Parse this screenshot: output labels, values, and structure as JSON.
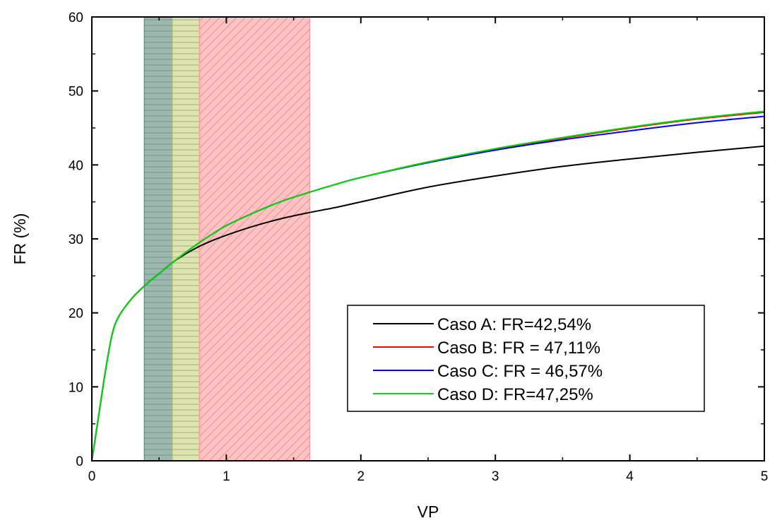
{
  "chart_data": {
    "type": "line",
    "xlabel": "VP",
    "ylabel": "FR (%)",
    "xlim": [
      0,
      5
    ],
    "ylim": [
      0,
      60
    ],
    "xticks": [
      "0",
      "1",
      "2",
      "3",
      "4",
      "5"
    ],
    "yticks": [
      "0",
      "10",
      "20",
      "30",
      "40",
      "50",
      "60"
    ],
    "grid": false,
    "legend_position": "lower-right",
    "shaded_regions": [
      {
        "x_range": [
          0.39,
          0.6
        ],
        "color": "#5a8a7a",
        "hatch": "horizontal"
      },
      {
        "x_range": [
          0.6,
          0.8
        ],
        "color": "#c8d27a",
        "hatch": "horizontal"
      },
      {
        "x_range": [
          0.8,
          1.62
        ],
        "color": "#ff9999",
        "hatch": "diagonal"
      }
    ],
    "x": [
      0,
      0.05,
      0.1,
      0.15,
      0.2,
      0.3,
      0.4,
      0.5,
      0.6,
      0.7,
      0.8,
      0.9,
      1.0,
      1.2,
      1.4,
      1.6,
      1.8,
      2.0,
      2.5,
      3.0,
      3.5,
      4.0,
      4.5,
      5.0
    ],
    "series": [
      {
        "name": "Caso A: FR=42,54%",
        "color": "#000000",
        "values": [
          0,
          6,
          12,
          17,
          19.5,
          22,
          23.8,
          25.3,
          26.8,
          28,
          29,
          29.8,
          30.5,
          31.7,
          32.7,
          33.5,
          34.2,
          35,
          37,
          38.5,
          39.8,
          40.8,
          41.7,
          42.54
        ]
      },
      {
        "name": "Caso B: FR = 47,11%",
        "color": "#ff0000",
        "values": [
          0,
          6,
          12,
          17,
          19.5,
          22,
          23.8,
          25.3,
          26.8,
          28.2,
          29.5,
          30.7,
          31.8,
          33.5,
          35,
          36.2,
          37.3,
          38.3,
          40.4,
          42.1,
          43.6,
          45,
          46.2,
          47.11
        ]
      },
      {
        "name": "Caso C: FR = 46,57%",
        "color": "#0000ff",
        "values": [
          0,
          6,
          12,
          17,
          19.5,
          22,
          23.8,
          25.3,
          26.8,
          28.2,
          29.5,
          30.7,
          31.8,
          33.5,
          35,
          36.2,
          37.3,
          38.3,
          40.3,
          42,
          43.4,
          44.6,
          45.7,
          46.57
        ]
      },
      {
        "name": "Caso D: FR=47,25%",
        "color": "#00dd00",
        "values": [
          0,
          6,
          12,
          17,
          19.5,
          22,
          23.8,
          25.3,
          26.8,
          28.2,
          29.5,
          30.7,
          31.8,
          33.5,
          35,
          36.2,
          37.3,
          38.3,
          40.4,
          42.2,
          43.7,
          45.1,
          46.3,
          47.25
        ]
      }
    ]
  }
}
